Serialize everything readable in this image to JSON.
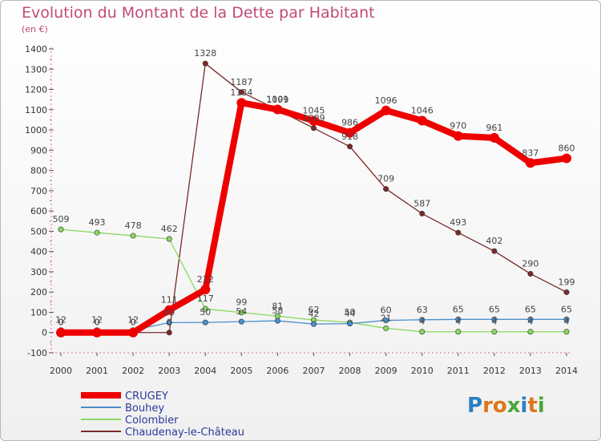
{
  "title": "Evolution du Montant de la Dette par Habitant",
  "subtitle": "(en €)",
  "logo": {
    "text": "Proxiti",
    "letters": [
      "P",
      "r",
      "o",
      "x",
      "i",
      "t",
      "i"
    ],
    "colors": [
      "#2a7fc1",
      "#e0741c",
      "#e0741c",
      "#4aa63a",
      "#2a7fc1",
      "#e0741c",
      "#4aa63a"
    ]
  },
  "chart_data": {
    "type": "line",
    "title": "Evolution du Montant de la Dette par Habitant",
    "subtitle": "(en €)",
    "x": [
      "2000",
      "2001",
      "2002",
      "2003",
      "2004",
      "2005",
      "2006",
      "2007",
      "2008",
      "2009",
      "2010",
      "2011",
      "2012",
      "2013",
      "2014"
    ],
    "ylim": [
      -100,
      1400
    ],
    "yticks": [
      -100,
      0,
      100,
      200,
      300,
      400,
      500,
      600,
      700,
      800,
      900,
      1000,
      1100,
      1200,
      1300,
      1400
    ],
    "grid": false,
    "legend_position": "bottom-left",
    "series": [
      {
        "name": "Chaudenay-le-Château",
        "color": "#7a2a2a",
        "values": [
          0,
          0,
          0,
          0,
          1328,
          1187,
          1099,
          1009,
          918,
          709,
          587,
          493,
          402,
          290,
          199
        ],
        "labels": [
          "0",
          "0",
          "0",
          "0",
          "1328",
          "1187",
          "1099",
          "1009",
          "918",
          "709",
          "587",
          "493",
          "402",
          "290",
          "199"
        ]
      },
      {
        "name": "Colombier",
        "color": "#88d860",
        "values": [
          509,
          493,
          478,
          462,
          117,
          99,
          81,
          62,
          50,
          21,
          4,
          4,
          4,
          4,
          4
        ],
        "labels": [
          "509",
          "493",
          "478",
          "462",
          "117",
          "99",
          "81",
          "62",
          "50",
          "21",
          "4",
          "4",
          "4",
          "4",
          "4"
        ]
      },
      {
        "name": "Bouhey",
        "color": "#4a8fcc",
        "values": [
          12,
          12,
          12,
          49,
          50,
          54,
          58,
          42,
          44,
          60,
          63,
          65,
          65,
          65,
          65
        ],
        "labels": [
          "12",
          "12",
          "12",
          "49",
          "50",
          "54",
          "58",
          "42",
          "44",
          "60",
          "63",
          "65",
          "65",
          "65",
          "65"
        ]
      },
      {
        "name": "CRUGEY",
        "color": "#ee0000",
        "values": [
          0,
          0,
          0,
          111,
          212,
          1134,
          1101,
          1045,
          986,
          1096,
          1046,
          970,
          961,
          837,
          860
        ],
        "labels": [
          "0",
          "0",
          "0",
          "111",
          "212",
          "1134",
          "1101",
          "1045",
          "986",
          "1096",
          "1046",
          "970",
          "961",
          "837",
          "860"
        ]
      }
    ]
  }
}
